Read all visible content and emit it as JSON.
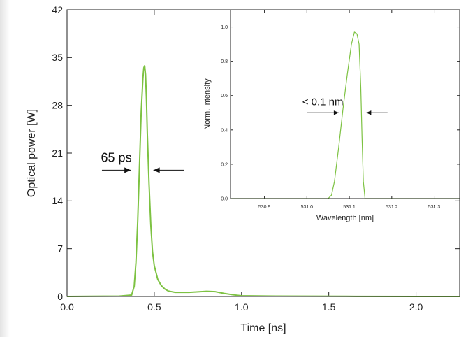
{
  "chart_data": [
    {
      "type": "line",
      "title": "",
      "xlabel": "Time [ns]",
      "ylabel": "Optical power [W]",
      "xlim": [
        0.0,
        2.25
      ],
      "ylim": [
        0,
        42
      ],
      "x_ticks": [
        0.0,
        0.5,
        1.0,
        1.5,
        2.0
      ],
      "x_tick_labels": [
        "0.0",
        "0.5",
        "1.0",
        "1.5",
        "2.0"
      ],
      "y_ticks": [
        0,
        7,
        14,
        21,
        28,
        35,
        42
      ],
      "y_tick_labels": [
        "0",
        "7",
        "14",
        "21",
        "28",
        "35",
        "42"
      ],
      "grid": false,
      "series_color": "#7dc242",
      "series": [
        {
          "x": [
            0.0,
            0.3,
            0.37,
            0.385,
            0.395,
            0.405,
            0.415,
            0.425,
            0.435,
            0.44,
            0.445,
            0.45,
            0.455,
            0.46,
            0.47,
            0.48,
            0.49,
            0.5,
            0.52,
            0.54,
            0.56,
            0.58,
            0.62,
            0.7,
            0.8,
            0.85,
            0.9,
            0.95,
            1.0,
            1.2,
            1.6,
            2.0,
            2.25
          ],
          "y": [
            0.0,
            0.05,
            0.2,
            1.5,
            5.0,
            11.0,
            19.0,
            27.0,
            32.0,
            33.5,
            33.8,
            32.5,
            29.0,
            24.0,
            16.5,
            10.5,
            6.5,
            4.5,
            2.5,
            1.6,
            1.1,
            0.8,
            0.6,
            0.6,
            0.75,
            0.7,
            0.45,
            0.25,
            0.1,
            0.05,
            0.02,
            0.0,
            0.0
          ]
        }
      ],
      "annotation": {
        "label": "65 ps",
        "arrow_left_x": [
          0.2,
          0.365
        ],
        "arrow_right_x": [
          0.495,
          0.67
        ],
        "arrow_y": 18.5
      }
    },
    {
      "type": "line",
      "title": "",
      "xlabel": "Wavelength [nm]",
      "ylabel": "Norm. intensity",
      "xlim": [
        530.82,
        531.36
      ],
      "ylim": [
        0.0,
        1.1
      ],
      "x_ticks": [
        530.9,
        531.0,
        531.1,
        531.2,
        531.3
      ],
      "x_tick_labels": [
        "530.9",
        "531.0",
        "531.1",
        "531.2",
        "531.3"
      ],
      "y_ticks": [
        0.0,
        0.2,
        0.4,
        0.6,
        0.8,
        1.0
      ],
      "y_tick_labels": [
        "0.0",
        "0.2",
        "0.4",
        "0.6",
        "0.8",
        "1.0"
      ],
      "grid": false,
      "series_color": "#7dc242",
      "series": [
        {
          "x": [
            530.82,
            531.05,
            531.058,
            531.065,
            531.075,
            531.085,
            531.095,
            531.105,
            531.112,
            531.118,
            531.123,
            531.127,
            531.13,
            531.133,
            531.137,
            531.36
          ],
          "y": [
            0.0,
            0.0,
            0.02,
            0.1,
            0.3,
            0.52,
            0.72,
            0.9,
            0.97,
            0.96,
            0.9,
            0.65,
            0.35,
            0.1,
            0.0,
            0.0
          ]
        }
      ],
      "annotation": {
        "label": "< 0.1 nm",
        "arrow_left_x": [
          531.0,
          531.075
        ],
        "arrow_right_x": [
          531.14,
          531.19
        ],
        "arrow_y": 0.5
      }
    }
  ]
}
